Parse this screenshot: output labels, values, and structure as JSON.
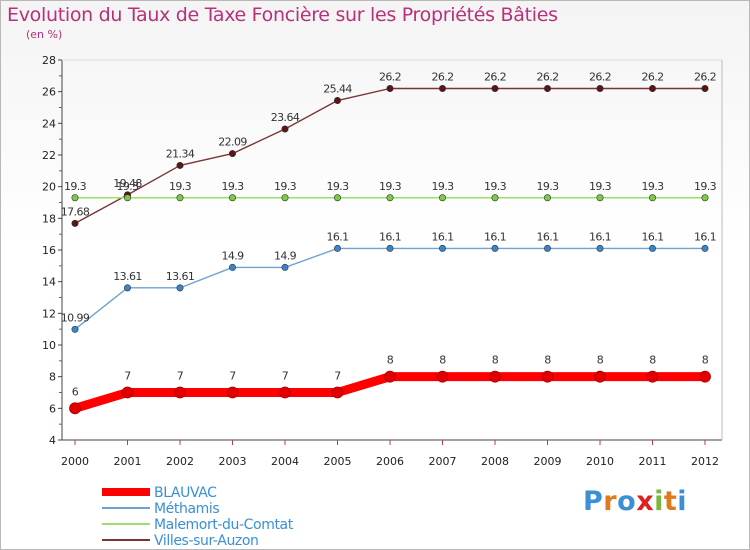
{
  "title": "Evolution du Taux de Taxe Foncière sur les Propriétés Bâties",
  "unit_label": "(en %)",
  "logo": {
    "text": "Proxiti",
    "colors": [
      "#3a8fd6",
      "#e07a1c",
      "#3a8fd6",
      "#e02020",
      "#7ab83a",
      "#e07a1c",
      "#3a8fd6"
    ]
  },
  "chart_data": {
    "type": "line",
    "title": "Evolution du Taux de Taxe Foncière sur les Propriétés Bâties",
    "ylabel": "(en %)",
    "xlabel": "",
    "x": [
      "2000",
      "2001",
      "2002",
      "2003",
      "2004",
      "2005",
      "2006",
      "2007",
      "2008",
      "2009",
      "2010",
      "2011",
      "2012"
    ],
    "ylim": [
      4,
      28
    ],
    "yticks": [
      4,
      6,
      8,
      10,
      12,
      14,
      16,
      18,
      20,
      22,
      24,
      26,
      28
    ],
    "grid": false,
    "legend_position": "bottom-left",
    "series": [
      {
        "name": "BLAUVAC",
        "color": "#ff0000",
        "marker": "#e00000",
        "values": [
          6,
          7,
          7,
          7,
          7,
          7,
          8,
          8,
          8,
          8,
          8,
          8,
          8
        ],
        "labels": [
          "6",
          "7",
          "7",
          "7",
          "7",
          "7",
          "8",
          "8",
          "8",
          "8",
          "8",
          "8",
          "8"
        ]
      },
      {
        "name": "Méthamis",
        "color": "#6fa3d0",
        "marker": "#3a85c8",
        "values": [
          10.99,
          13.61,
          13.61,
          14.9,
          14.9,
          16.1,
          16.1,
          16.1,
          16.1,
          16.1,
          16.1,
          16.1,
          16.1
        ],
        "labels": [
          "10.99",
          "13.61",
          "13.61",
          "14.9",
          "14.9",
          "16.1",
          "16.1",
          "16.1",
          "16.1",
          "16.1",
          "16.1",
          "16.1",
          "16.1"
        ]
      },
      {
        "name": "Malemort-du-Comtat",
        "color": "#9be06a",
        "marker": "#7ccc42",
        "values": [
          19.3,
          19.3,
          19.3,
          19.3,
          19.3,
          19.3,
          19.3,
          19.3,
          19.3,
          19.3,
          19.3,
          19.3,
          19.3
        ],
        "labels": [
          "19.3",
          "19.3",
          "19.3",
          "19.3",
          "19.3",
          "19.3",
          "19.3",
          "19.3",
          "19.3",
          "19.3",
          "19.3",
          "19.3",
          "19.3"
        ]
      },
      {
        "name": "Villes-sur-Auzon",
        "color": "#7a3535",
        "marker": "#5a1515",
        "values": [
          17.68,
          19.48,
          21.34,
          22.09,
          23.64,
          25.44,
          26.2,
          26.2,
          26.2,
          26.2,
          26.2,
          26.2,
          26.2
        ],
        "labels": [
          "17.68",
          "19.48",
          "21.34",
          "22.09",
          "23.64",
          "25.44",
          "26.2",
          "26.2",
          "26.2",
          "26.2",
          "26.2",
          "26.2",
          "26.2"
        ]
      }
    ]
  }
}
